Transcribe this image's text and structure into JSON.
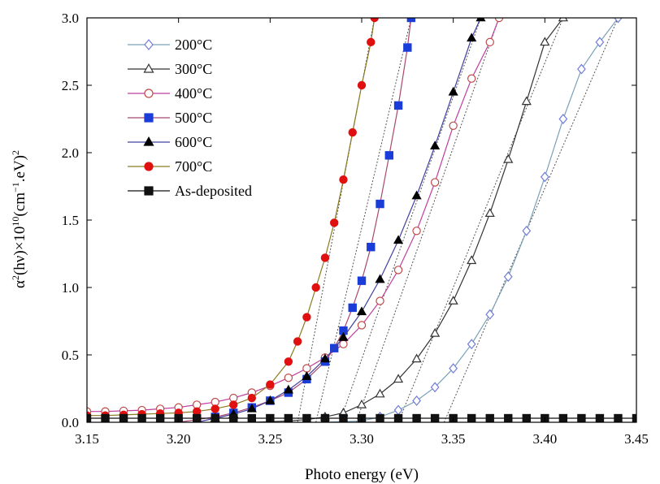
{
  "chart_data": {
    "type": "line",
    "xlabel": "Photo energy (eV)",
    "ylabel_parts": {
      "a": "α",
      "a_sup": "2",
      "b": "(hν)×10",
      "b_sup": "10",
      "c": "(cm",
      "c_sup": "−1",
      "d": ".eV)",
      "d_sup": "2"
    },
    "xlim": [
      3.15,
      3.45
    ],
    "ylim": [
      0,
      3.0
    ],
    "xticks": [
      "3.15",
      "3.20",
      "3.25",
      "3.30",
      "3.35",
      "3.40",
      "3.45"
    ],
    "xtick_values": [
      3.15,
      3.2,
      3.25,
      3.3,
      3.35,
      3.4,
      3.45
    ],
    "yticks": [
      "0.0",
      "0.5",
      "1.0",
      "1.5",
      "2.0",
      "2.5",
      "3.0"
    ],
    "ytick_values": [
      0,
      0.5,
      1.0,
      1.5,
      2.0,
      2.5,
      3.0
    ],
    "legend_position": "top-left",
    "series": [
      {
        "name": "200°C",
        "marker": "diamond-open",
        "color": "#6f7bd8",
        "line_color": "#7aa0b8",
        "points": [
          [
            3.28,
            0.0
          ],
          [
            3.29,
            0.005
          ],
          [
            3.3,
            0.01
          ],
          [
            3.31,
            0.04
          ],
          [
            3.32,
            0.09
          ],
          [
            3.33,
            0.16
          ],
          [
            3.34,
            0.26
          ],
          [
            3.35,
            0.4
          ],
          [
            3.36,
            0.58
          ],
          [
            3.37,
            0.8
          ],
          [
            3.38,
            1.08
          ],
          [
            3.39,
            1.42
          ],
          [
            3.4,
            1.82
          ],
          [
            3.41,
            2.25
          ],
          [
            3.42,
            2.62
          ],
          [
            3.43,
            2.82
          ],
          [
            3.44,
            3.0
          ]
        ],
        "fit": [
          [
            3.345,
            0.0
          ],
          [
            3.44,
            3.0
          ]
        ]
      },
      {
        "name": "300°C",
        "marker": "triangle-open",
        "color": "#333333",
        "line_color": "#333333",
        "points": [
          [
            3.24,
            0.0
          ],
          [
            3.25,
            0.005
          ],
          [
            3.26,
            0.01
          ],
          [
            3.27,
            0.02
          ],
          [
            3.28,
            0.04
          ],
          [
            3.29,
            0.07
          ],
          [
            3.3,
            0.13
          ],
          [
            3.31,
            0.21
          ],
          [
            3.32,
            0.32
          ],
          [
            3.33,
            0.47
          ],
          [
            3.34,
            0.66
          ],
          [
            3.35,
            0.9
          ],
          [
            3.36,
            1.2
          ],
          [
            3.37,
            1.55
          ],
          [
            3.38,
            1.95
          ],
          [
            3.39,
            2.38
          ],
          [
            3.4,
            2.82
          ],
          [
            3.41,
            3.0
          ]
        ],
        "fit": [
          [
            3.32,
            0.0
          ],
          [
            3.41,
            3.0
          ]
        ]
      },
      {
        "name": "400°C",
        "marker": "circle-open",
        "color": "#c04848",
        "line_color": "#c03ca0",
        "points": [
          [
            3.15,
            0.08
          ],
          [
            3.16,
            0.08
          ],
          [
            3.17,
            0.085
          ],
          [
            3.18,
            0.09
          ],
          [
            3.19,
            0.1
          ],
          [
            3.2,
            0.11
          ],
          [
            3.21,
            0.13
          ],
          [
            3.22,
            0.15
          ],
          [
            3.23,
            0.18
          ],
          [
            3.24,
            0.22
          ],
          [
            3.25,
            0.27
          ],
          [
            3.26,
            0.33
          ],
          [
            3.27,
            0.4
          ],
          [
            3.28,
            0.48
          ],
          [
            3.29,
            0.58
          ],
          [
            3.3,
            0.72
          ],
          [
            3.31,
            0.9
          ],
          [
            3.32,
            1.13
          ],
          [
            3.33,
            1.42
          ],
          [
            3.34,
            1.78
          ],
          [
            3.35,
            2.2
          ],
          [
            3.36,
            2.55
          ],
          [
            3.37,
            2.82
          ],
          [
            3.375,
            3.0
          ]
        ],
        "fit": [
          [
            3.297,
            0.0
          ],
          [
            3.375,
            3.0
          ]
        ]
      },
      {
        "name": "500°C",
        "marker": "square-filled",
        "color": "#1a3cd8",
        "line_color": "#a84870",
        "points": [
          [
            3.2,
            0.0
          ],
          [
            3.21,
            0.02
          ],
          [
            3.22,
            0.04
          ],
          [
            3.23,
            0.07
          ],
          [
            3.24,
            0.11
          ],
          [
            3.25,
            0.16
          ],
          [
            3.26,
            0.22
          ],
          [
            3.27,
            0.32
          ],
          [
            3.28,
            0.45
          ],
          [
            3.285,
            0.55
          ],
          [
            3.29,
            0.68
          ],
          [
            3.295,
            0.85
          ],
          [
            3.3,
            1.05
          ],
          [
            3.305,
            1.3
          ],
          [
            3.31,
            1.62
          ],
          [
            3.315,
            1.98
          ],
          [
            3.32,
            2.35
          ],
          [
            3.325,
            2.78
          ],
          [
            3.327,
            3.0
          ]
        ],
        "fit": [
          [
            3.275,
            0.0
          ],
          [
            3.327,
            3.0
          ]
        ]
      },
      {
        "name": "600°C",
        "marker": "triangle-filled",
        "color": "#000000",
        "line_color": "#4040a0",
        "points": [
          [
            3.21,
            0.0
          ],
          [
            3.22,
            0.03
          ],
          [
            3.23,
            0.06
          ],
          [
            3.24,
            0.1
          ],
          [
            3.25,
            0.16
          ],
          [
            3.26,
            0.24
          ],
          [
            3.27,
            0.34
          ],
          [
            3.28,
            0.47
          ],
          [
            3.29,
            0.63
          ],
          [
            3.3,
            0.82
          ],
          [
            3.31,
            1.06
          ],
          [
            3.32,
            1.35
          ],
          [
            3.33,
            1.68
          ],
          [
            3.34,
            2.05
          ],
          [
            3.35,
            2.45
          ],
          [
            3.36,
            2.85
          ],
          [
            3.365,
            3.0
          ]
        ],
        "fit": [
          [
            3.288,
            0.0
          ],
          [
            3.365,
            3.0
          ]
        ]
      },
      {
        "name": "700°C",
        "marker": "circle-filled",
        "color": "#e01010",
        "line_color": "#8a7a20",
        "points": [
          [
            3.15,
            0.05
          ],
          [
            3.16,
            0.05
          ],
          [
            3.17,
            0.055
          ],
          [
            3.18,
            0.06
          ],
          [
            3.19,
            0.065
          ],
          [
            3.2,
            0.07
          ],
          [
            3.21,
            0.08
          ],
          [
            3.22,
            0.1
          ],
          [
            3.23,
            0.13
          ],
          [
            3.24,
            0.18
          ],
          [
            3.25,
            0.28
          ],
          [
            3.26,
            0.45
          ],
          [
            3.265,
            0.6
          ],
          [
            3.27,
            0.78
          ],
          [
            3.275,
            1.0
          ],
          [
            3.28,
            1.22
          ],
          [
            3.285,
            1.48
          ],
          [
            3.29,
            1.8
          ],
          [
            3.295,
            2.15
          ],
          [
            3.3,
            2.5
          ],
          [
            3.305,
            2.82
          ],
          [
            3.307,
            3.0
          ]
        ],
        "fit": [
          [
            3.265,
            0.0
          ],
          [
            3.307,
            3.0
          ]
        ]
      },
      {
        "name": "As-deposited",
        "marker": "square-filled",
        "color": "#111111",
        "line_color": "#111111",
        "points": [
          [
            3.15,
            0.03
          ],
          [
            3.16,
            0.03
          ],
          [
            3.17,
            0.03
          ],
          [
            3.18,
            0.03
          ],
          [
            3.19,
            0.03
          ],
          [
            3.2,
            0.03
          ],
          [
            3.21,
            0.03
          ],
          [
            3.22,
            0.03
          ],
          [
            3.23,
            0.03
          ],
          [
            3.24,
            0.03
          ],
          [
            3.25,
            0.03
          ],
          [
            3.26,
            0.03
          ],
          [
            3.27,
            0.03
          ],
          [
            3.28,
            0.03
          ],
          [
            3.29,
            0.03
          ],
          [
            3.3,
            0.03
          ],
          [
            3.31,
            0.03
          ],
          [
            3.32,
            0.03
          ],
          [
            3.33,
            0.03
          ],
          [
            3.34,
            0.03
          ],
          [
            3.35,
            0.03
          ],
          [
            3.36,
            0.03
          ],
          [
            3.37,
            0.03
          ],
          [
            3.38,
            0.03
          ],
          [
            3.39,
            0.03
          ],
          [
            3.4,
            0.03
          ],
          [
            3.41,
            0.03
          ],
          [
            3.42,
            0.03
          ],
          [
            3.43,
            0.03
          ],
          [
            3.44,
            0.03
          ],
          [
            3.45,
            0.03
          ]
        ],
        "fit": []
      }
    ]
  }
}
